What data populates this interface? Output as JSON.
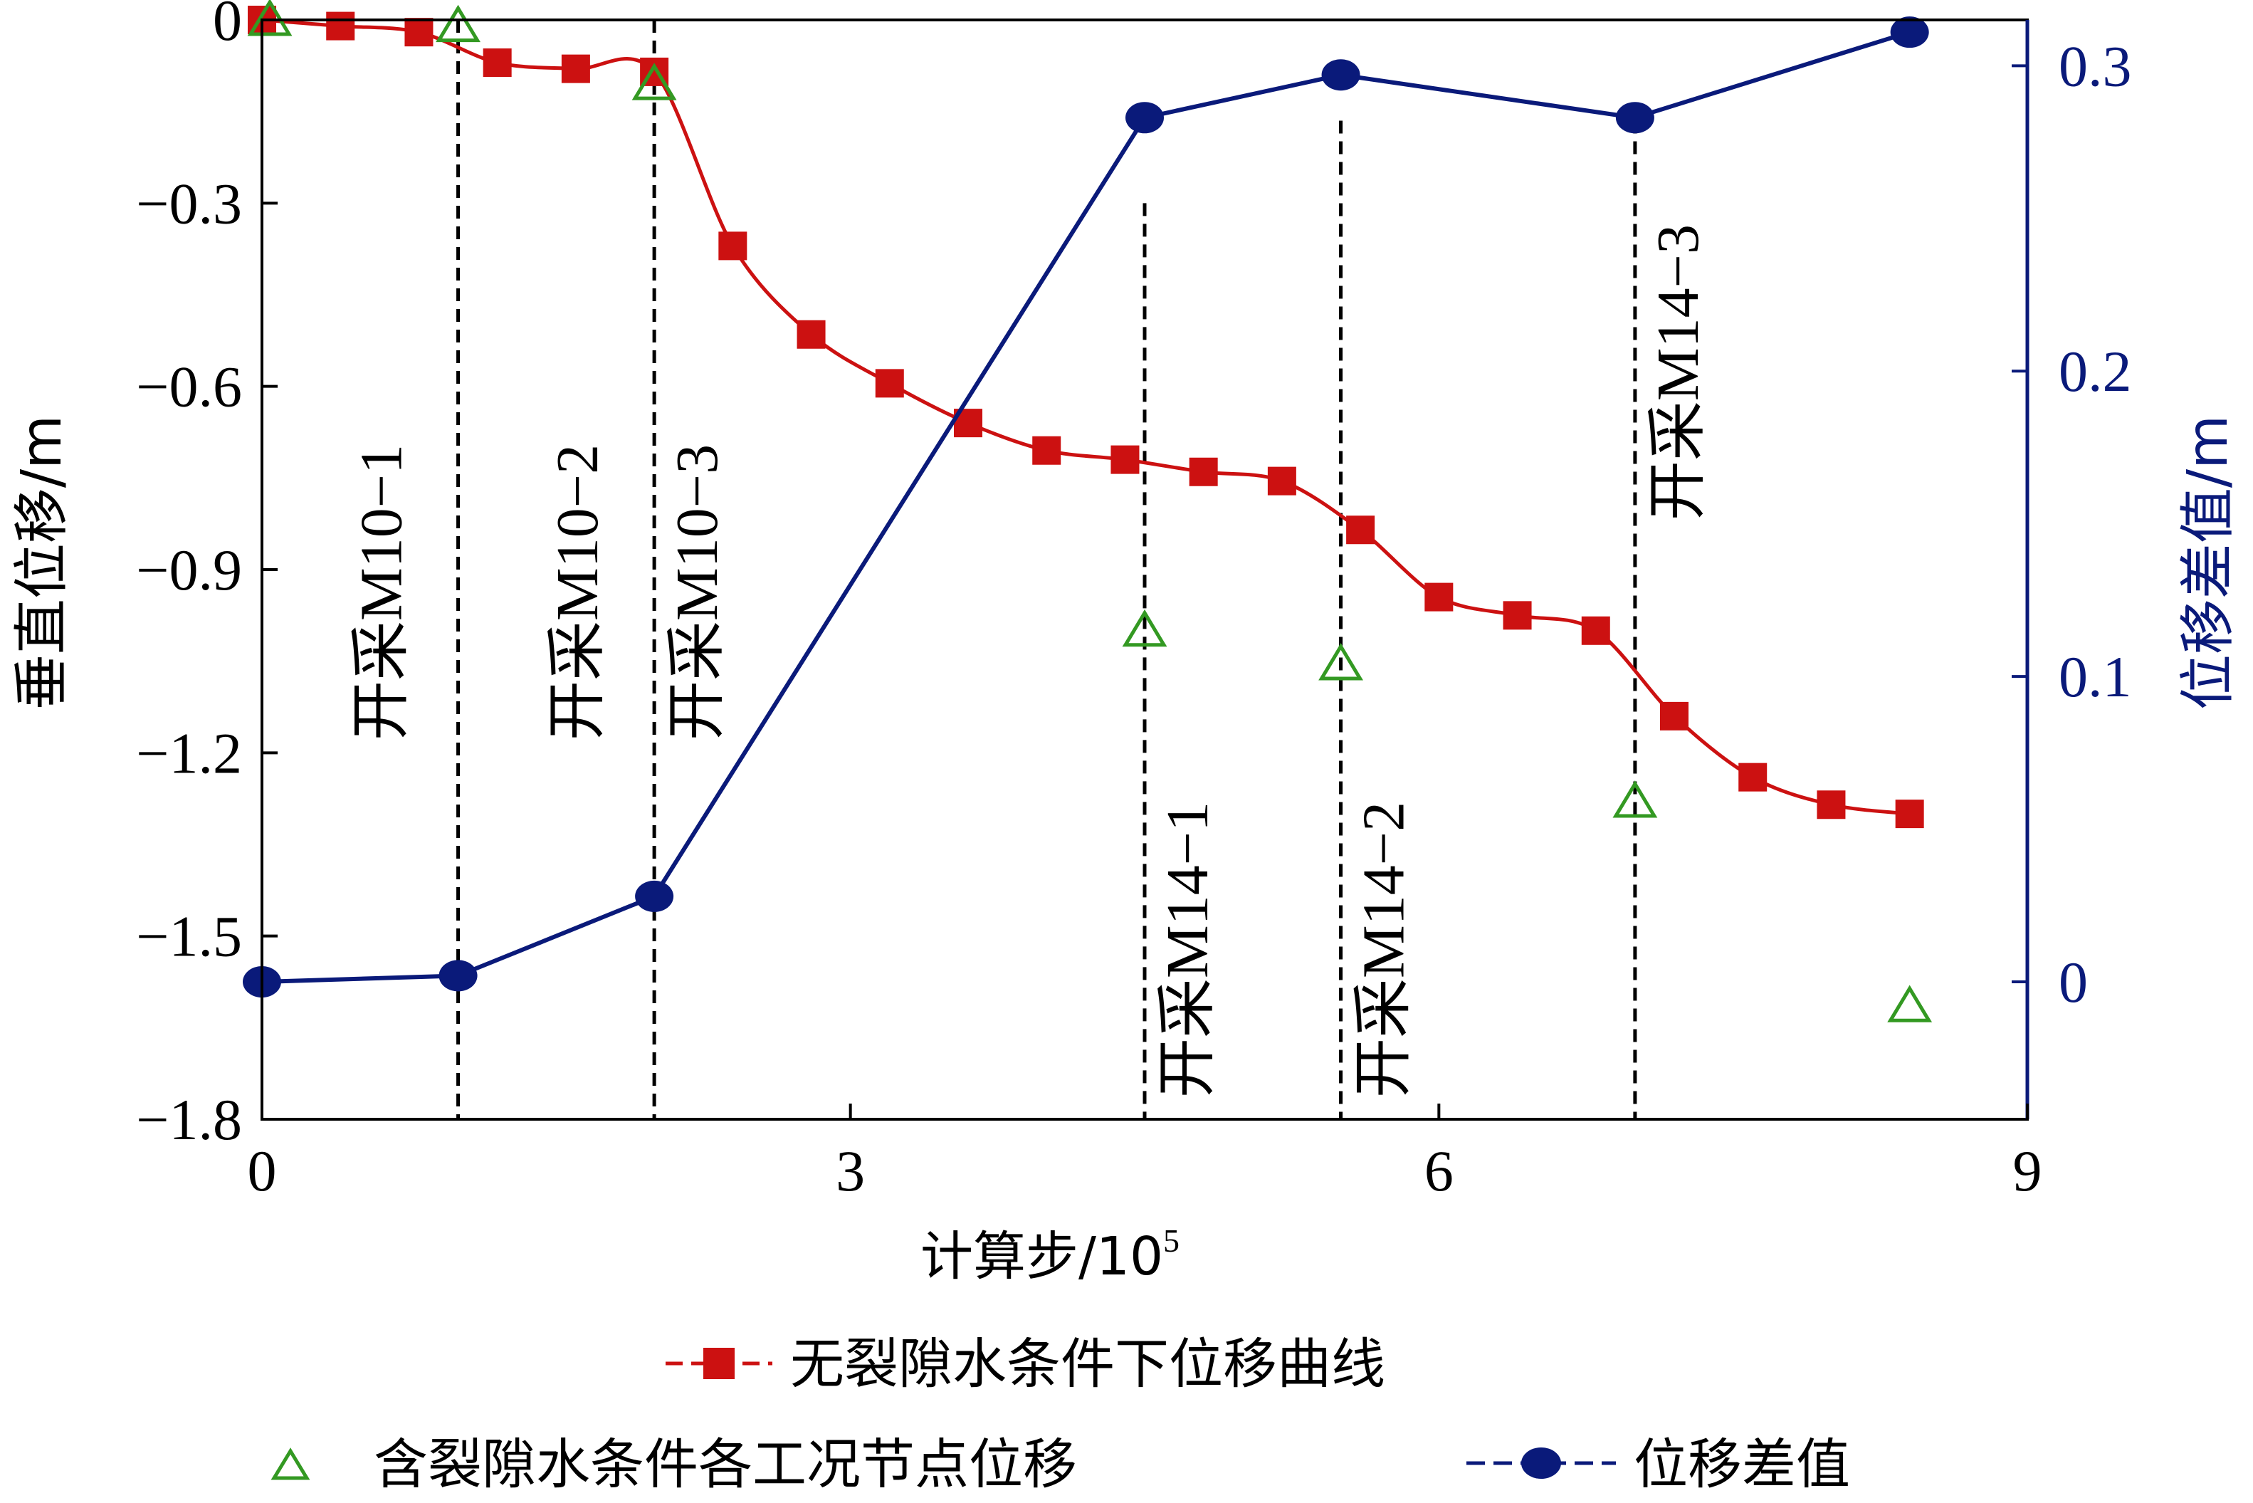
{
  "chart_data": {
    "type": "line",
    "xlabel": "计算步/10",
    "xlabel_sup": "5",
    "ylabel_left": "垂直位移/m",
    "ylabel_right": "位移差值/m",
    "xlim": [
      0,
      9
    ],
    "ylim_left": [
      -1.8,
      0
    ],
    "ylim_right": [
      -0.045,
      0.315
    ],
    "x_ticks": [
      0,
      3,
      6,
      9
    ],
    "x_tick_labels": [
      "0",
      "3",
      "6",
      "9"
    ],
    "y_left_ticks": [
      0,
      -0.3,
      -0.6,
      -0.9,
      -1.2,
      -1.5,
      -1.8
    ],
    "y_left_tick_labels": [
      "0",
      "−0.3",
      "−0.6",
      "−0.9",
      "−1.2",
      "−1.5",
      "−1.8"
    ],
    "y_right_ticks": [
      0,
      0.1,
      0.2,
      0.3
    ],
    "y_right_tick_labels": [
      "0",
      "0.1",
      "0.2",
      "0.3"
    ],
    "series": [
      {
        "name": "无裂隙水条件下位移曲线",
        "axis": "left",
        "color": "#cc1111",
        "marker": "square",
        "x": [
          0,
          0.4,
          0.8,
          1.2,
          1.6,
          2.0,
          2.4,
          2.8,
          3.2,
          3.6,
          4.0,
          4.4,
          4.8,
          5.2,
          5.6,
          6.0,
          6.4,
          6.8,
          7.2,
          7.6,
          8.0,
          8.4
        ],
        "y": [
          0,
          -0.01,
          -0.02,
          -0.07,
          -0.08,
          -0.085,
          -0.37,
          -0.515,
          -0.595,
          -0.66,
          -0.705,
          -0.72,
          -0.74,
          -0.755,
          -0.835,
          -0.945,
          -0.975,
          -1.0,
          -1.14,
          -1.24,
          -1.285,
          -1.3
        ]
      },
      {
        "name": "含裂隙水条件各工况节点位移",
        "axis": "left",
        "color": "#339922",
        "marker": "triangle-open",
        "line": false,
        "x": [
          0.04,
          1.0,
          2.0,
          4.5,
          5.5,
          7.0,
          8.4
        ],
        "y": [
          0,
          -0.01,
          -0.105,
          -1.0,
          -1.055,
          -1.28,
          -1.615
        ]
      },
      {
        "name": "位移差值",
        "axis": "right",
        "color": "#0a1a7a",
        "marker": "circle",
        "x": [
          0,
          1.0,
          2.0,
          4.5,
          5.5,
          7.0,
          8.4
        ],
        "y": [
          0,
          0.002,
          0.028,
          0.283,
          0.297,
          0.283,
          0.311
        ]
      }
    ],
    "vlines": [
      {
        "x": 1.0,
        "top": 0,
        "label": "开采M10−1",
        "label_side": "left",
        "label_anchor": "bottom"
      },
      {
        "x": 2.0,
        "top": 0,
        "label": "开采M10−2",
        "label_side": "left",
        "label_anchor": "bottom"
      },
      {
        "x": 2.0,
        "top": 0,
        "label": "开采M10−3",
        "label_side": "right",
        "label_anchor": "bottom"
      },
      {
        "x": 4.5,
        "top": -0.3,
        "label": "开采M14−1",
        "label_side": "right",
        "label_anchor": "axis"
      },
      {
        "x": 5.5,
        "top": -0.165,
        "label": "开采M14−2",
        "label_side": "right",
        "label_anchor": "axis"
      },
      {
        "x": 7.0,
        "top": -0.165,
        "label": "开采M14−3",
        "label_side": "right",
        "label_anchor": "top"
      }
    ],
    "legend": {
      "placement": "bottom",
      "entries": [
        "无裂隙水条件下位移曲线",
        "含裂隙水条件各工况节点位移",
        "位移差值"
      ]
    }
  }
}
